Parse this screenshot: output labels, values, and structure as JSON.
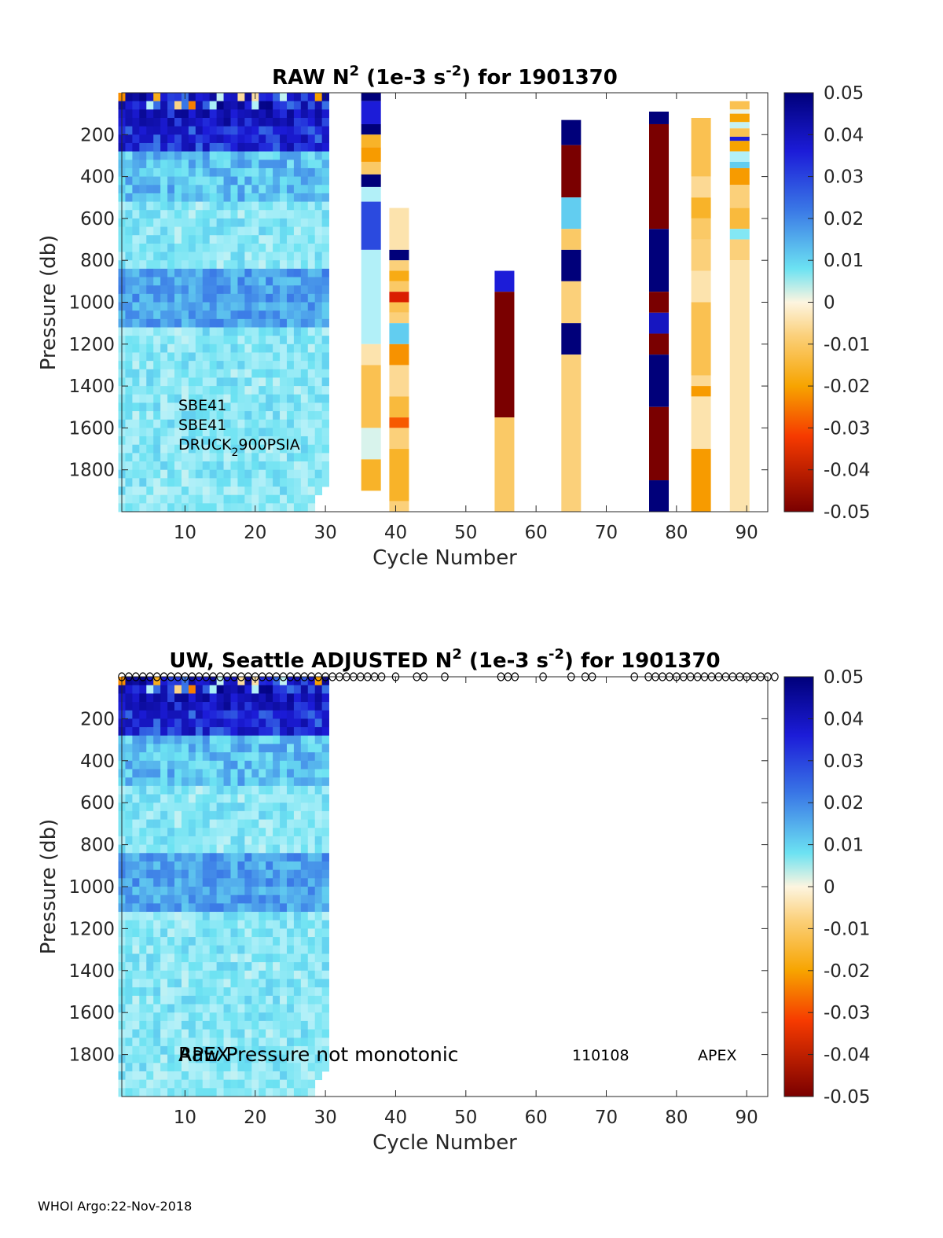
{
  "chart_data": [
    {
      "type": "heatmap",
      "title": "RAW N2 (1e-3 s-2) for 1901370",
      "title_parts": {
        "pre": "RAW N",
        "sup1": "2",
        "mid": " (1e-3 s",
        "sup2": "-2",
        "post": ") for 1901370"
      },
      "xlabel": "Cycle Number",
      "ylabel": "Pressure (db)",
      "xlim": [
        1,
        93
      ],
      "ylim": [
        2000,
        0
      ],
      "xticks": [
        10,
        20,
        30,
        40,
        50,
        60,
        70,
        80,
        90
      ],
      "yticks": [
        200,
        400,
        600,
        800,
        1000,
        1200,
        1400,
        1600,
        1800
      ],
      "colorbar": {
        "range": [
          -0.05,
          0.05
        ],
        "ticks": [
          "0.05",
          "0.04",
          "0.03",
          "0.02",
          "0.01",
          "0",
          "-0.01",
          "-0.02",
          "-0.03",
          "-0.04",
          "-0.05"
        ]
      },
      "dense_block": {
        "cycles": [
          1,
          30
        ],
        "pressure": [
          0,
          2000
        ],
        "typical_range": [
          0.003,
          0.012
        ],
        "surface_max": 0.05
      },
      "columns": [
        {
          "cycle": 36.5,
          "segments": [
            [
              0,
              40,
              0.05
            ],
            [
              40,
              150,
              0.03
            ],
            [
              150,
              200,
              0.05
            ],
            [
              200,
              260,
              -0.008
            ],
            [
              260,
              330,
              -0.012
            ],
            [
              330,
              390,
              -0.005
            ],
            [
              390,
              450,
              0.05
            ],
            [
              450,
              520,
              0.004
            ],
            [
              520,
              750,
              0.025
            ],
            [
              750,
              1200,
              0.004
            ],
            [
              1200,
              1300,
              -0.002
            ],
            [
              1300,
              1600,
              -0.006
            ],
            [
              1600,
              1750,
              0.002
            ],
            [
              1750,
              1900,
              -0.008
            ]
          ]
        },
        {
          "cycle": 40.5,
          "segments": [
            [
              550,
              750,
              -0.002
            ],
            [
              750,
              800,
              0.05
            ],
            [
              800,
              850,
              -0.004
            ],
            [
              850,
              900,
              -0.009
            ],
            [
              900,
              950,
              -0.005
            ],
            [
              950,
              1000,
              -0.035
            ],
            [
              1000,
              1050,
              -0.006
            ],
            [
              1050,
              1100,
              -0.004
            ],
            [
              1100,
              1200,
              0.012
            ],
            [
              1200,
              1300,
              -0.014
            ],
            [
              1300,
              1450,
              -0.003
            ],
            [
              1450,
              1550,
              -0.007
            ],
            [
              1550,
              1600,
              -0.025
            ],
            [
              1600,
              1700,
              -0.004
            ],
            [
              1700,
              1950,
              -0.008
            ],
            [
              1950,
              2000,
              -0.004
            ]
          ]
        },
        {
          "cycle": 55.5,
          "segments": [
            [
              850,
              950,
              0.03
            ],
            [
              950,
              1550,
              -0.05
            ],
            [
              1550,
              2000,
              -0.005
            ]
          ]
        },
        {
          "cycle": 65,
          "segments": [
            [
              130,
              250,
              0.05
            ],
            [
              250,
              500,
              -0.05
            ],
            [
              500,
              650,
              0.012
            ],
            [
              650,
              750,
              -0.005
            ],
            [
              750,
              900,
              0.05
            ],
            [
              900,
              1100,
              -0.004
            ],
            [
              1100,
              1250,
              0.05
            ],
            [
              1250,
              2000,
              -0.004
            ]
          ]
        },
        {
          "cycle": 77.5,
          "segments": [
            [
              90,
              150,
              0.05
            ],
            [
              150,
              650,
              -0.05
            ],
            [
              650,
              950,
              0.05
            ],
            [
              950,
              1050,
              -0.05
            ],
            [
              1050,
              1150,
              0.035
            ],
            [
              1150,
              1250,
              -0.05
            ],
            [
              1250,
              1500,
              0.05
            ],
            [
              1500,
              1850,
              -0.05
            ],
            [
              1850,
              2000,
              0.05
            ]
          ]
        },
        {
          "cycle": 83.5,
          "segments": [
            [
              120,
              400,
              -0.006
            ],
            [
              400,
              500,
              -0.003
            ],
            [
              500,
              600,
              -0.008
            ],
            [
              600,
              700,
              -0.005
            ],
            [
              700,
              850,
              -0.004
            ],
            [
              850,
              1000,
              -0.002
            ],
            [
              1000,
              1350,
              -0.006
            ],
            [
              1350,
              1400,
              -0.003
            ],
            [
              1400,
              1450,
              -0.012
            ],
            [
              1450,
              1700,
              -0.002
            ],
            [
              1700,
              2000,
              -0.012
            ]
          ]
        },
        {
          "cycle": 89,
          "segments": [
            [
              40,
              80,
              -0.006
            ],
            [
              80,
              100,
              0.001
            ],
            [
              100,
              140,
              -0.01
            ],
            [
              140,
              170,
              0.003
            ],
            [
              170,
              210,
              -0.006
            ],
            [
              210,
              230,
              0.03
            ],
            [
              230,
              280,
              -0.01
            ],
            [
              280,
              330,
              0.004
            ],
            [
              330,
              360,
              0.012
            ],
            [
              360,
              440,
              -0.012
            ],
            [
              440,
              550,
              -0.004
            ],
            [
              550,
              650,
              -0.007
            ],
            [
              650,
              700,
              0.008
            ],
            [
              700,
              800,
              -0.004
            ],
            [
              800,
              2000,
              -0.002
            ]
          ]
        }
      ],
      "annotations": [
        "SBE41",
        "SBE41"
      ],
      "annotation_druck": {
        "pre": "DRUCK",
        "sub": "2",
        "post": "900PSIA"
      }
    },
    {
      "type": "heatmap",
      "title": "UW, Seattle  ADJUSTED N2 (1e-3 s-2) for 1901370",
      "title_parts": {
        "pre": "UW, Seattle  ADJUSTED N",
        "sup1": "2",
        "mid": " (1e-3 s",
        "sup2": "-2",
        "post": ") for 1901370"
      },
      "xlabel": "Cycle Number",
      "ylabel": "Pressure (db)",
      "xlim": [
        1,
        93
      ],
      "ylim": [
        2000,
        0
      ],
      "xticks": [
        10,
        20,
        30,
        40,
        50,
        60,
        70,
        80,
        90
      ],
      "yticks": [
        200,
        400,
        600,
        800,
        1000,
        1200,
        1400,
        1600,
        1800
      ],
      "colorbar": {
        "range": [
          -0.05,
          0.05
        ],
        "ticks": [
          "0.05",
          "0.04",
          "0.03",
          "0.02",
          "0.01",
          "0",
          "-0.01",
          "-0.02",
          "-0.03",
          "-0.04",
          "-0.05"
        ]
      },
      "dense_block": {
        "cycles": [
          1,
          30
        ],
        "pressure": [
          0,
          2000
        ],
        "typical_range": [
          0.003,
          0.012
        ],
        "surface_max": 0.05
      },
      "flagged_cycles": [
        1,
        2,
        3,
        4,
        5,
        6,
        7,
        8,
        9,
        10,
        11,
        12,
        13,
        14,
        15,
        16,
        17,
        18,
        19,
        20,
        21,
        22,
        23,
        24,
        25,
        26,
        27,
        28,
        29,
        30,
        31,
        32,
        33,
        34,
        35,
        36,
        37,
        38,
        40,
        43,
        44,
        47,
        55,
        56,
        57,
        61,
        65,
        67,
        68,
        74,
        76,
        77,
        78,
        79,
        80,
        81,
        82,
        83,
        84,
        85,
        86,
        87,
        88,
        89,
        90,
        91,
        92,
        93,
        94
      ],
      "flag_marker": "o",
      "annotations": {
        "overlap_a": "Raw Pressure not monotonic",
        "overlap_b": "APEX",
        "code": "110108",
        "model": "APEX"
      }
    }
  ],
  "footer": "WHOI Argo:22-Nov-2018"
}
